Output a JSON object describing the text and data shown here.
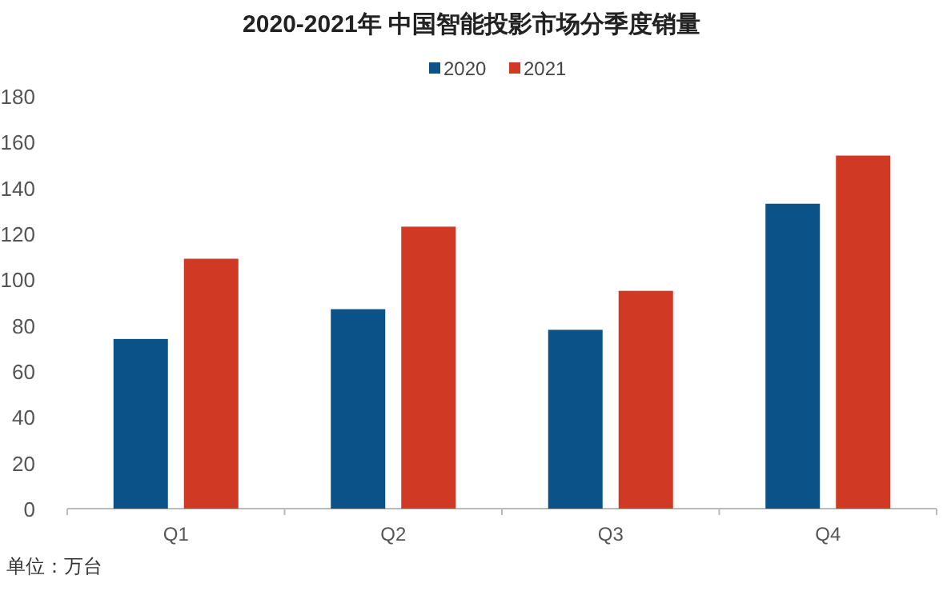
{
  "chart_data": {
    "type": "bar",
    "title": "2020-2021年 中国智能投影市场分季度销量",
    "categories": [
      "Q1",
      "Q2",
      "Q3",
      "Q4"
    ],
    "series": [
      {
        "name": "2020",
        "color": "#0b5289",
        "values": [
          74,
          87,
          78,
          133
        ]
      },
      {
        "name": "2021",
        "color": "#d03a24",
        "values": [
          109,
          123,
          95,
          154
        ]
      }
    ],
    "ylim": [
      0,
      180
    ],
    "yticks": [
      0,
      20,
      40,
      60,
      80,
      100,
      120,
      140,
      160,
      180
    ],
    "legend": "top",
    "grid": false,
    "annotations": [
      "单位：万台"
    ]
  }
}
